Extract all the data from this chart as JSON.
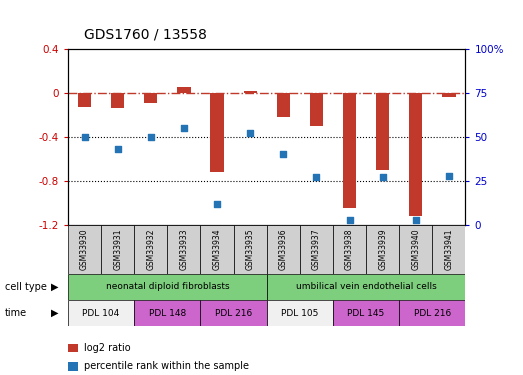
{
  "title": "GDS1760 / 13558",
  "samples": [
    "GSM33930",
    "GSM33931",
    "GSM33932",
    "GSM33933",
    "GSM33934",
    "GSM33935",
    "GSM33936",
    "GSM33937",
    "GSM33938",
    "GSM33939",
    "GSM33940",
    "GSM33941"
  ],
  "log2_ratio": [
    -0.13,
    -0.14,
    -0.09,
    0.05,
    -0.72,
    0.02,
    -0.22,
    -0.3,
    -1.05,
    -0.7,
    -1.12,
    -0.04
  ],
  "percentile_rank": [
    50,
    43,
    50,
    55,
    12,
    52,
    40,
    27,
    3,
    27,
    3,
    28
  ],
  "ylim_left": [
    -1.2,
    0.4
  ],
  "ylim_right": [
    0,
    100
  ],
  "bar_color": "#c0392b",
  "dot_color": "#2474b5",
  "dotted_lines": [
    -0.4,
    -0.8
  ],
  "left_ticks": [
    0.4,
    0.0,
    -0.4,
    -0.8,
    -1.2
  ],
  "right_ticks": [
    100,
    75,
    50,
    25,
    0
  ],
  "cell_type_groups": [
    {
      "label": "neonatal diploid fibroblasts",
      "start": 0,
      "end": 6,
      "color": "#7dce7d"
    },
    {
      "label": "umbilical vein endothelial cells",
      "start": 6,
      "end": 12,
      "color": "#7dce7d"
    }
  ],
  "time_groups": [
    {
      "label": "PDL 104",
      "start": 0,
      "end": 2,
      "color": "#f0f0f0"
    },
    {
      "label": "PDL 148",
      "start": 2,
      "end": 4,
      "color": "#cc66cc"
    },
    {
      "label": "PDL 216",
      "start": 4,
      "end": 6,
      "color": "#cc66cc"
    },
    {
      "label": "PDL 105",
      "start": 6,
      "end": 8,
      "color": "#f0f0f0"
    },
    {
      "label": "PDL 145",
      "start": 8,
      "end": 10,
      "color": "#cc66cc"
    },
    {
      "label": "PDL 216",
      "start": 10,
      "end": 12,
      "color": "#cc66cc"
    }
  ],
  "cell_type_label": "cell type",
  "time_label": "time",
  "legend_items": [
    {
      "label": "log2 ratio",
      "color": "#c0392b"
    },
    {
      "label": "percentile rank within the sample",
      "color": "#2474b5"
    }
  ],
  "bg_color": "#ffffff",
  "tick_color_left": "#cc0000",
  "tick_color_right": "#0000cc",
  "sample_box_color": "#d0d0d0"
}
